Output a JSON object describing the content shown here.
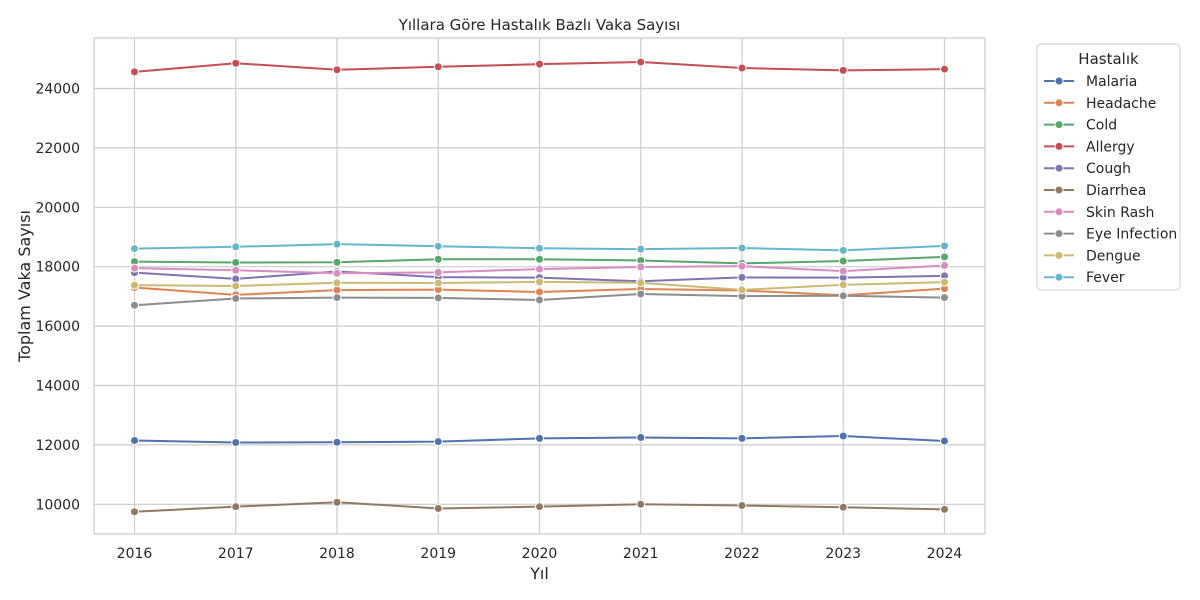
{
  "chart_data": {
    "type": "line",
    "title": "Yıllara Göre Hastalık Bazlı Vaka Sayısı",
    "xlabel": "Yıl",
    "ylabel": "Toplam Vaka Sayısı",
    "x": [
      2016,
      2017,
      2018,
      2019,
      2020,
      2021,
      2022,
      2023,
      2024
    ],
    "xlim": [
      2015.6,
      2024.4
    ],
    "ylim": [
      9000,
      25700
    ],
    "yticks": [
      10000,
      12000,
      14000,
      16000,
      18000,
      20000,
      22000,
      24000
    ],
    "grid": true,
    "legend_title": "Hastalık",
    "legend_position": "outside-right-top",
    "series": [
      {
        "name": "Malaria",
        "color": "#4c72b0",
        "values": [
          12150,
          12080,
          12090,
          12110,
          12220,
          12250,
          12220,
          12300,
          12130
        ]
      },
      {
        "name": "Headache",
        "color": "#dd8452",
        "values": [
          17300,
          17050,
          17210,
          17230,
          17150,
          17250,
          17200,
          17040,
          17260
        ]
      },
      {
        "name": "Cold",
        "color": "#55a868",
        "values": [
          18170,
          18140,
          18150,
          18250,
          18250,
          18210,
          18110,
          18190,
          18330
        ]
      },
      {
        "name": "Allergy",
        "color": "#c44e52",
        "values": [
          24560,
          24850,
          24630,
          24730,
          24820,
          24890,
          24690,
          24610,
          24650
        ]
      },
      {
        "name": "Cough",
        "color": "#8172b3",
        "values": [
          17800,
          17590,
          17840,
          17650,
          17630,
          17510,
          17640,
          17630,
          17690
        ]
      },
      {
        "name": "Diarrhea",
        "color": "#937860",
        "values": [
          9750,
          9920,
          10070,
          9860,
          9920,
          10000,
          9960,
          9900,
          9830
        ]
      },
      {
        "name": "Skin Rash",
        "color": "#da8bc3",
        "values": [
          17950,
          17880,
          17780,
          17810,
          17920,
          17990,
          18020,
          17850,
          18040
        ]
      },
      {
        "name": "Eye Infection",
        "color": "#8c8c8c",
        "values": [
          16700,
          16930,
          16960,
          16950,
          16880,
          17080,
          17010,
          17020,
          16960
        ]
      },
      {
        "name": "Dengue",
        "color": "#ccb974",
        "values": [
          17380,
          17350,
          17460,
          17450,
          17490,
          17460,
          17220,
          17390,
          17480
        ]
      },
      {
        "name": "Fever",
        "color": "#64b5cd",
        "values": [
          18610,
          18670,
          18760,
          18690,
          18620,
          18590,
          18630,
          18550,
          18700
        ]
      }
    ]
  }
}
